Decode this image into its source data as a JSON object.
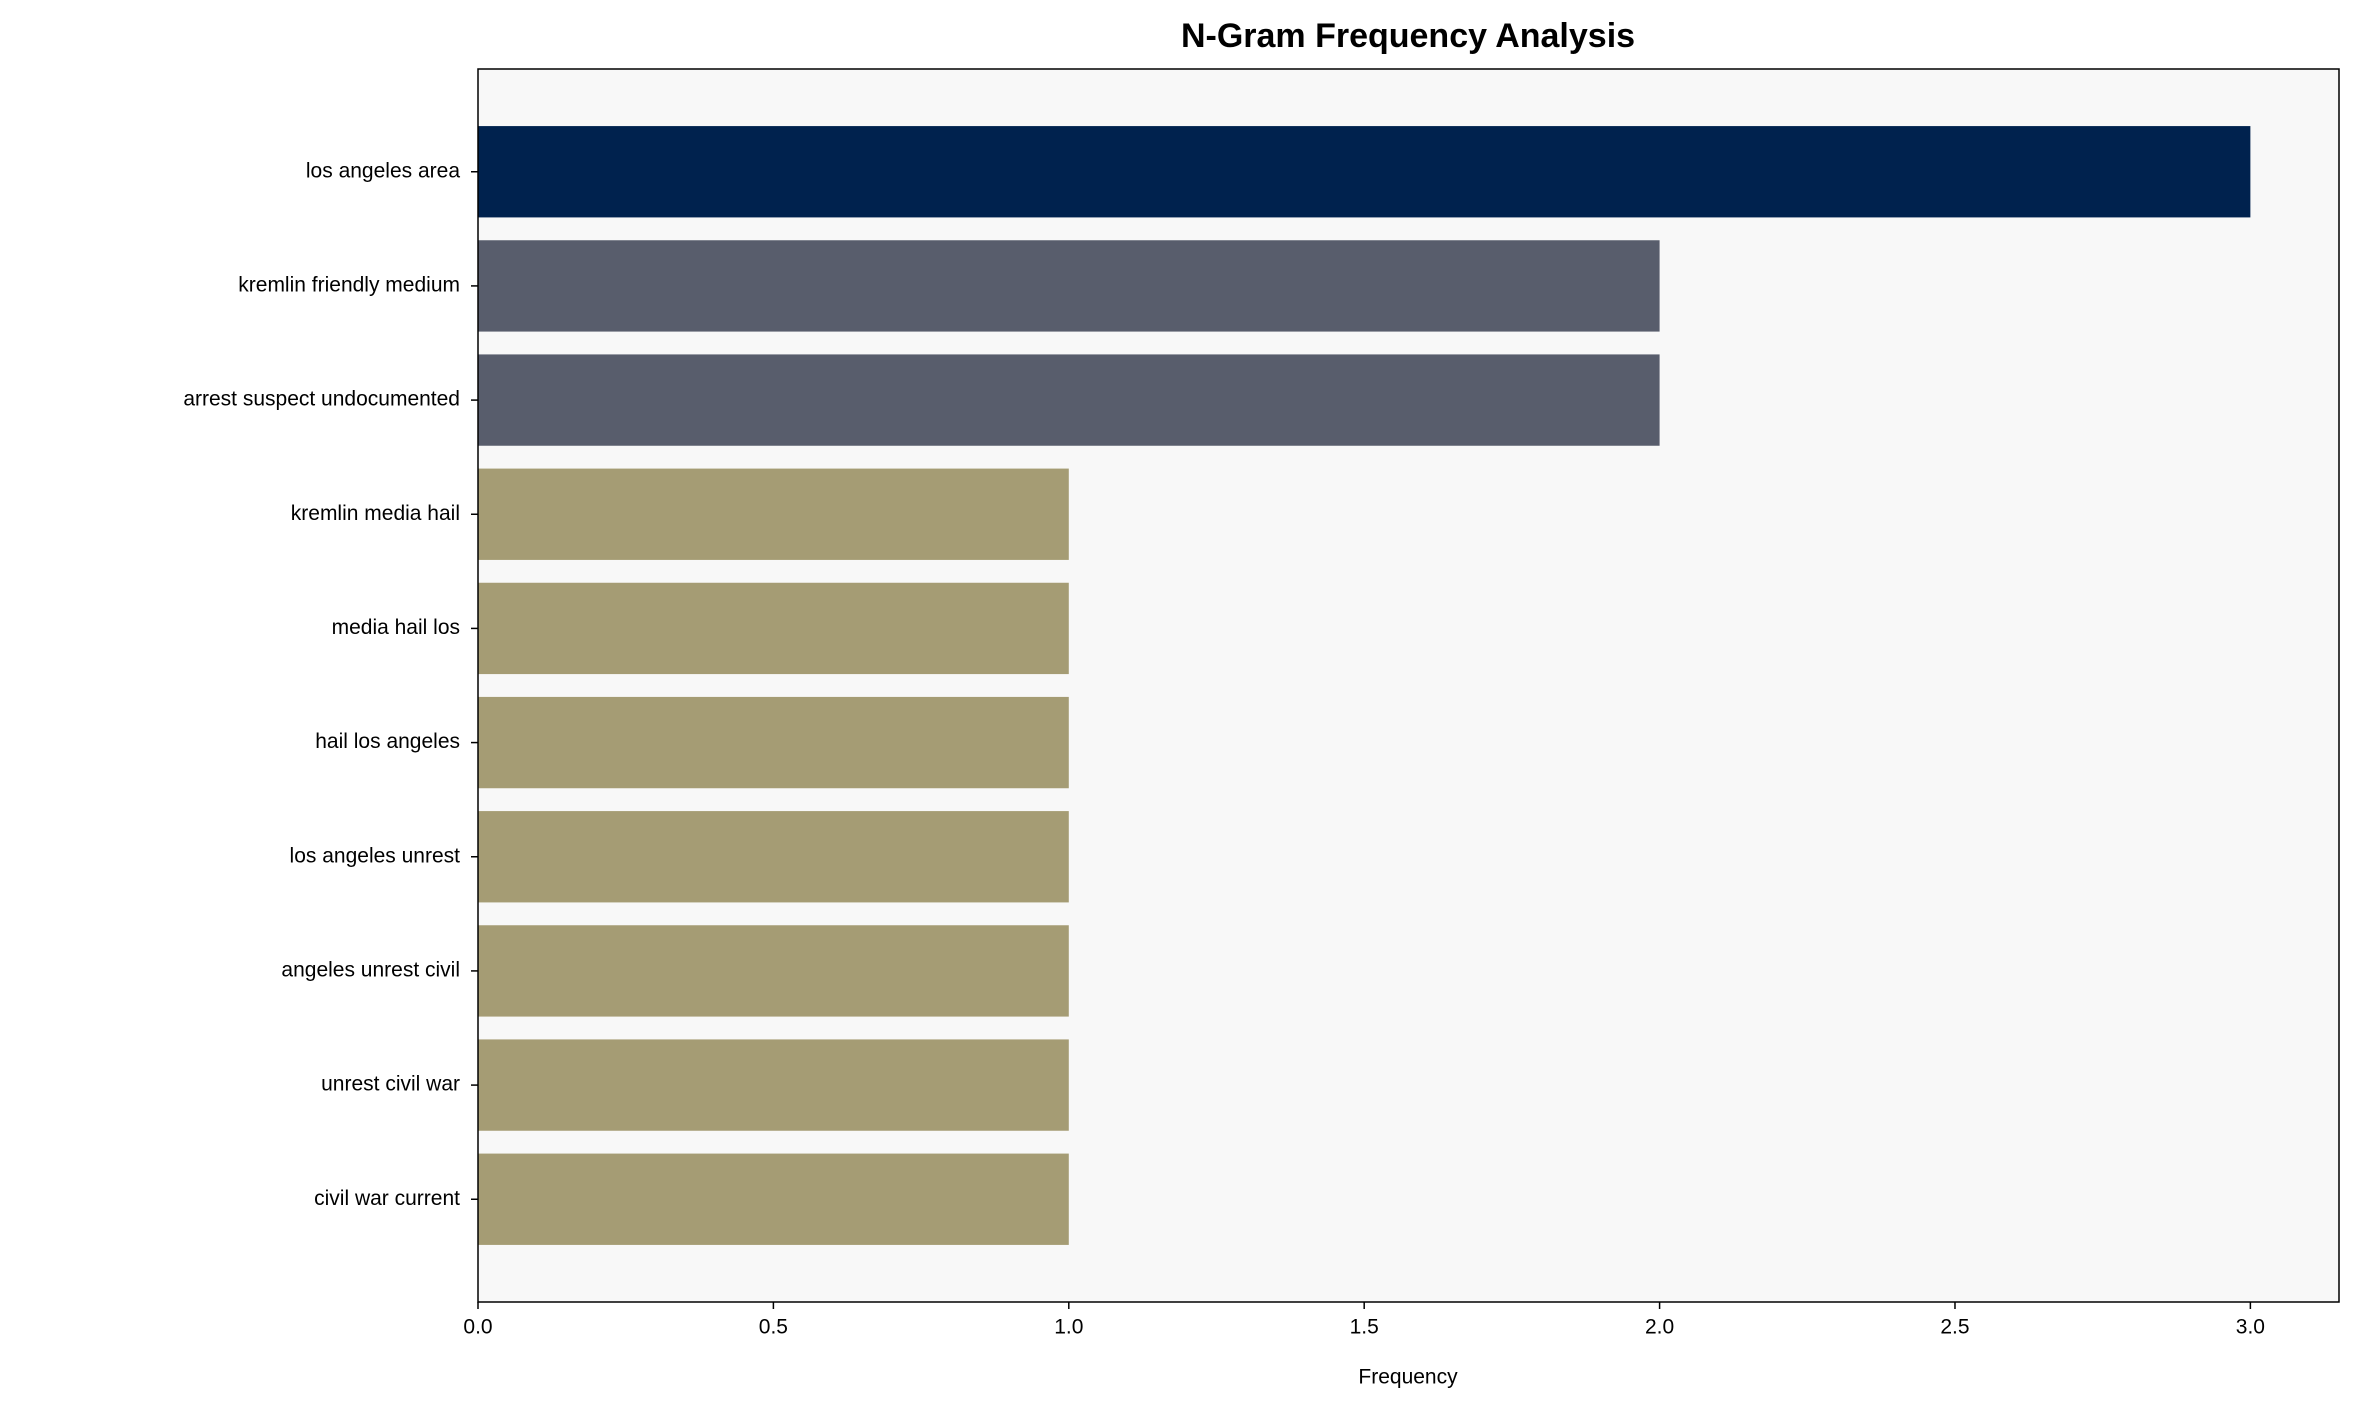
{
  "chart_data": {
    "type": "barh",
    "title": "N-Gram Frequency Analysis",
    "xlabel": "Frequency",
    "categories": [
      "los angeles area",
      "kremlin friendly medium",
      "arrest suspect undocumented",
      "kremlin media hail",
      "media hail los",
      "hail los angeles",
      "los angeles unrest",
      "angeles unrest civil",
      "unrest civil war",
      "civil war current"
    ],
    "values": [
      3,
      2,
      2,
      1,
      1,
      1,
      1,
      1,
      1,
      1
    ],
    "colors": [
      "#00224e",
      "#585d6c",
      "#585d6c",
      "#a59c74",
      "#a59c74",
      "#a59c74",
      "#a59c74",
      "#a59c74",
      "#a59c74",
      "#a59c74"
    ],
    "xlim": [
      0,
      3.15
    ],
    "xticks": [
      {
        "value": 0,
        "label": "0.0"
      },
      0.5,
      {
        "value": 1,
        "label": "1.0"
      },
      1.5,
      {
        "value": 2,
        "label": "2.0"
      },
      2.5,
      {
        "value": 3,
        "label": "3.0"
      }
    ],
    "grid": false
  }
}
